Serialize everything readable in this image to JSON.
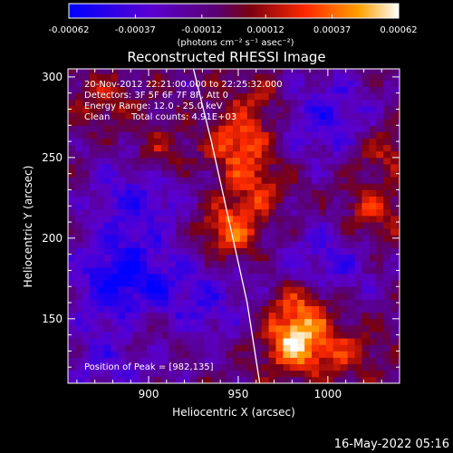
{
  "chart_data": {
    "type": "heatmap",
    "title": "Reconstructed RHESSI Image",
    "xlabel": "Heliocentric X (arcsec)",
    "ylabel": "Heliocentric Y (arcsec)",
    "xlim": [
      855,
      1040
    ],
    "ylim": [
      110,
      305
    ],
    "x_ticks": [
      900,
      950,
      1000
    ],
    "y_ticks": [
      150,
      200,
      250,
      300
    ],
    "colorbar": {
      "ticks": [
        "-0.00062",
        "-0.00037",
        "-0.00012",
        "0.00012",
        "0.00037",
        "0.00062"
      ],
      "tick_values": [
        -0.00062,
        -0.00037,
        -0.00012,
        0.00012,
        0.00037,
        0.00062
      ],
      "unit_label": "(photons cm⁻² s⁻¹ asec⁻²)",
      "range": [
        -0.00062,
        0.00062
      ]
    },
    "annotations": {
      "time": "20-Nov-2012 22:21:00.000 to 22:25:32.000",
      "detectors": "Detectors: 3F 5F 6F 7F 8F, Att 0",
      "energy": "Energy Range: 12.0 - 25.0 keV",
      "clean": "Clean",
      "counts": "Total counts: 4.91E+03",
      "peak": "Position of Peak = [982,135]"
    },
    "footer_date": "16-May-2022 05:16",
    "limb_curve": {
      "x": [
        925,
        935,
        945,
        955,
        962
      ],
      "y": [
        305,
        260,
        210,
        160,
        110
      ]
    },
    "sources": [
      {
        "x": 982,
        "y": 135,
        "intensity": 0.00062
      },
      {
        "x": 945,
        "y": 205,
        "intensity": 0.00045
      },
      {
        "x": 950,
        "y": 258,
        "intensity": 0.00042
      },
      {
        "x": 985,
        "y": 158,
        "intensity": 0.00038
      },
      {
        "x": 905,
        "y": 250,
        "intensity": 0.0003
      },
      {
        "x": 1025,
        "y": 215,
        "intensity": 0.0003
      },
      {
        "x": 1030,
        "y": 255,
        "intensity": 0.00025
      },
      {
        "x": 875,
        "y": 285,
        "intensity": 0.0002
      },
      {
        "x": 960,
        "y": 232,
        "intensity": 0.00028
      },
      {
        "x": 1010,
        "y": 130,
        "intensity": 0.00022
      },
      {
        "x": 900,
        "y": 145,
        "intensity": 0.00018
      },
      {
        "x": 960,
        "y": 285,
        "intensity": 0.00022
      }
    ],
    "negative_regions": [
      {
        "x": 885,
        "y": 175,
        "intensity": -0.0005
      },
      {
        "x": 895,
        "y": 230,
        "intensity": -0.00035
      },
      {
        "x": 1000,
        "y": 275,
        "intensity": -0.00035
      },
      {
        "x": 1000,
        "y": 185,
        "intensity": -0.0003
      },
      {
        "x": 930,
        "y": 160,
        "intensity": -0.00028
      },
      {
        "x": 880,
        "y": 120,
        "intensity": -0.00025
      }
    ]
  }
}
